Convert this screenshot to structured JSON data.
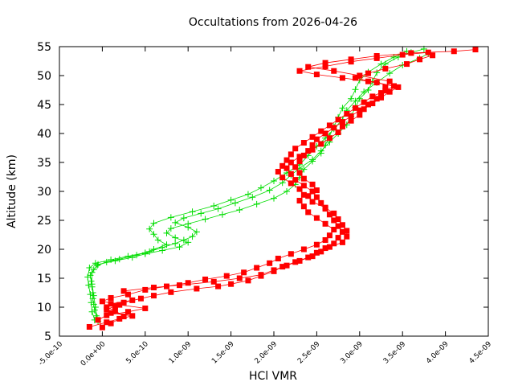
{
  "chart_data": {
    "type": "line",
    "title": "Occultations from 2026-04-26",
    "xlabel": "HCl VMR",
    "ylabel": "Altitude (km)",
    "xlim": [
      -5e-10,
      4.5e-09
    ],
    "ylim": [
      5,
      55
    ],
    "x_tick_labels": [
      "-5.0e-10",
      "0.0e+00",
      "5.0e-10",
      "1.0e-09",
      "1.5e-09",
      "2.0e-09",
      "2.5e-09",
      "3.0e-09",
      "3.5e-09",
      "4.0e-09",
      "4.5e-09"
    ],
    "y_tick_labels": [
      "5",
      "10",
      "15",
      "20",
      "25",
      "30",
      "35",
      "40",
      "45",
      "50",
      "55"
    ],
    "grid": false,
    "legend": "none",
    "series": [
      {
        "color": "#00dd00",
        "marker": "plus",
        "points": [
          [
            -5e-11,
            7.5
          ],
          [
            -7e-11,
            8.5
          ],
          [
            -9e-11,
            9.5
          ],
          [
            -1e-10,
            10.5
          ],
          [
            -1.1e-10,
            11.5
          ],
          [
            -1.1e-10,
            12.5
          ],
          [
            -1.2e-10,
            13.5
          ],
          [
            -1.3e-10,
            14.5
          ],
          [
            -1.4e-10,
            15.5
          ],
          [
            -1e-10,
            16.5
          ],
          [
            -6e-11,
            17.2
          ],
          [
            5e-11,
            17.8
          ],
          [
            2e-10,
            18.3
          ],
          [
            4e-10,
            19.0
          ],
          [
            5.5e-10,
            19.6
          ],
          [
            7e-10,
            20.3
          ],
          [
            8.5e-10,
            21.0
          ],
          [
            9.5e-10,
            21.6
          ],
          [
            1.05e-09,
            22.2
          ],
          [
            1.1e-09,
            23.0
          ],
          [
            1e-09,
            23.8
          ],
          [
            8.5e-10,
            24.6
          ],
          [
            9.5e-10,
            25.4
          ],
          [
            1.15e-09,
            26.2
          ],
          [
            1.35e-09,
            27.0
          ],
          [
            1.55e-09,
            28.0
          ],
          [
            1.75e-09,
            29.0
          ],
          [
            1.95e-09,
            30.2
          ],
          [
            2.1e-09,
            31.5
          ],
          [
            2.2e-09,
            32.8
          ],
          [
            2.3e-09,
            34.0
          ],
          [
            2.45e-09,
            35.5
          ],
          [
            2.55e-09,
            37.0
          ],
          [
            2.65e-09,
            38.5
          ],
          [
            2.75e-09,
            40.0
          ],
          [
            2.85e-09,
            41.5
          ],
          [
            2.9e-09,
            43.0
          ],
          [
            2.95e-09,
            44.5
          ],
          [
            3e-09,
            46.0
          ],
          [
            3.1e-09,
            47.5
          ],
          [
            3.15e-09,
            49.0
          ],
          [
            3.2e-09,
            50.5
          ],
          [
            3.3e-09,
            52.0
          ],
          [
            3.45e-09,
            53.2
          ],
          [
            3.6e-09,
            54.0
          ],
          [
            3.75e-09,
            54.6
          ]
        ]
      },
      {
        "color": "#00dd00",
        "marker": "plus",
        "points": [
          [
            -9e-11,
            7.8
          ],
          [
            -1.2e-10,
            9.2
          ],
          [
            -1.3e-10,
            10.8
          ],
          [
            -1.4e-10,
            12.2
          ],
          [
            -1.6e-10,
            13.8
          ],
          [
            -1.7e-10,
            15.2
          ],
          [
            -1.5e-10,
            16.8
          ],
          [
            -8e-11,
            17.6
          ],
          [
            1e-10,
            18.2
          ],
          [
            3e-10,
            18.8
          ],
          [
            5e-10,
            19.4
          ],
          [
            6e-10,
            20.0
          ],
          [
            7.5e-10,
            20.8
          ],
          [
            6.5e-10,
            21.6
          ],
          [
            6e-10,
            22.6
          ],
          [
            5.5e-10,
            23.5
          ],
          [
            6e-10,
            24.5
          ],
          [
            8e-10,
            25.5
          ],
          [
            1.05e-09,
            26.5
          ],
          [
            1.3e-09,
            27.5
          ],
          [
            1.5e-09,
            28.5
          ],
          [
            1.7e-09,
            29.5
          ],
          [
            1.85e-09,
            30.6
          ],
          [
            2e-09,
            31.8
          ],
          [
            2.15e-09,
            33.2
          ],
          [
            2.3e-09,
            34.6
          ],
          [
            2.4e-09,
            36.2
          ],
          [
            2.5e-09,
            37.8
          ],
          [
            2.6e-09,
            39.2
          ],
          [
            2.7e-09,
            40.8
          ],
          [
            2.8e-09,
            42.4
          ],
          [
            2.85e-09,
            44.0
          ],
          [
            2.95e-09,
            45.6
          ],
          [
            3.05e-09,
            47.2
          ],
          [
            3.2e-09,
            48.8
          ],
          [
            3.35e-09,
            50.4
          ],
          [
            3.5e-09,
            51.8
          ],
          [
            3.7e-09,
            53.0
          ],
          [
            3.8e-09,
            53.8
          ]
        ]
      },
      {
        "color": "#00dd00",
        "marker": "plus",
        "points": [
          [
            -6e-11,
            8.2
          ],
          [
            -8e-11,
            10.0
          ],
          [
            -1e-10,
            12.0
          ],
          [
            -1.2e-10,
            14.0
          ],
          [
            -1.2e-10,
            16.0
          ],
          [
            -5e-11,
            17.4
          ],
          [
            1.5e-10,
            18.0
          ],
          [
            3.5e-10,
            18.6
          ],
          [
            5e-10,
            19.2
          ],
          [
            7e-10,
            19.8
          ],
          [
            9e-10,
            20.4
          ],
          [
            1e-09,
            21.2
          ],
          [
            8.5e-10,
            22.0
          ],
          [
            7.5e-10,
            22.8
          ],
          [
            8e-10,
            23.6
          ],
          [
            1e-09,
            24.4
          ],
          [
            1.2e-09,
            25.2
          ],
          [
            1.4e-09,
            26.0
          ],
          [
            1.6e-09,
            26.8
          ],
          [
            1.8e-09,
            27.8
          ],
          [
            2e-09,
            28.8
          ],
          [
            2.15e-09,
            30.0
          ],
          [
            2.25e-09,
            31.2
          ],
          [
            2.3e-09,
            32.4
          ],
          [
            2.35e-09,
            33.8
          ],
          [
            2.45e-09,
            35.2
          ],
          [
            2.55e-09,
            36.6
          ],
          [
            2.6e-09,
            38.0
          ],
          [
            2.65e-09,
            39.6
          ],
          [
            2.7e-09,
            41.2
          ],
          [
            2.75e-09,
            42.8
          ],
          [
            2.8e-09,
            44.4
          ],
          [
            2.9e-09,
            46.0
          ],
          [
            2.95e-09,
            47.6
          ],
          [
            3e-09,
            49.2
          ],
          [
            3.1e-09,
            50.6
          ],
          [
            3.25e-09,
            52.0
          ],
          [
            3.4e-09,
            53.2
          ],
          [
            3.55e-09,
            54.2
          ]
        ]
      },
      {
        "color": "#ff0000",
        "marker": "square",
        "points": [
          [
            -1.5e-10,
            6.6
          ],
          [
            5e-11,
            7.4
          ],
          [
            2e-10,
            8.0
          ],
          [
            3.5e-10,
            8.5
          ],
          [
            1e-10,
            9.0
          ],
          [
            5e-11,
            9.6
          ],
          [
            1.5e-10,
            10.2
          ],
          [
            2.5e-10,
            10.8
          ],
          [
            4.5e-10,
            11.5
          ],
          [
            6e-10,
            12.0
          ],
          [
            8e-10,
            12.6
          ],
          [
            1.1e-09,
            13.2
          ],
          [
            1.35e-09,
            13.6
          ],
          [
            1.5e-09,
            14.0
          ],
          [
            1.7e-09,
            14.6
          ],
          [
            1.85e-09,
            15.4
          ],
          [
            2e-09,
            16.2
          ],
          [
            2.1e-09,
            17.0
          ],
          [
            2.25e-09,
            17.8
          ],
          [
            2.4e-09,
            18.6
          ],
          [
            2.5e-09,
            19.4
          ],
          [
            2.6e-09,
            20.2
          ],
          [
            2.7e-09,
            21.0
          ],
          [
            2.75e-09,
            22.0
          ],
          [
            2.8e-09,
            23.0
          ],
          [
            2.75e-09,
            24.0
          ],
          [
            2.7e-09,
            25.0
          ],
          [
            2.65e-09,
            26.0
          ],
          [
            2.6e-09,
            27.0
          ],
          [
            2.55e-09,
            28.0
          ],
          [
            2.5e-09,
            29.0
          ],
          [
            2.45e-09,
            30.0
          ],
          [
            2.35e-09,
            31.0
          ],
          [
            2.25e-09,
            32.0
          ],
          [
            2.2e-09,
            33.0
          ],
          [
            2.15e-09,
            34.0
          ],
          [
            2.2e-09,
            35.0
          ],
          [
            2.3e-09,
            36.0
          ],
          [
            2.4e-09,
            37.0
          ],
          [
            2.45e-09,
            38.0
          ],
          [
            2.5e-09,
            39.0
          ],
          [
            2.6e-09,
            40.0
          ],
          [
            2.7e-09,
            41.0
          ],
          [
            2.8e-09,
            42.0
          ],
          [
            2.9e-09,
            43.0
          ],
          [
            3e-09,
            44.0
          ],
          [
            3.1e-09,
            45.0
          ],
          [
            3.2e-09,
            46.0
          ],
          [
            3.25e-09,
            47.0
          ],
          [
            3.3e-09,
            48.0
          ],
          [
            3.35e-09,
            49.0
          ],
          [
            3e-09,
            50.0
          ],
          [
            2.7e-09,
            50.8
          ],
          [
            2.4e-09,
            51.5
          ],
          [
            2.6e-09,
            52.2
          ],
          [
            2.9e-09,
            52.8
          ],
          [
            3.2e-09,
            53.4
          ],
          [
            3.6e-09,
            53.9
          ],
          [
            4.1e-09,
            54.2
          ],
          [
            4.35e-09,
            54.5
          ]
        ]
      },
      {
        "color": "#ff0000",
        "marker": "square",
        "points": [
          [
            0.0,
            6.5
          ],
          [
            -5e-11,
            7.8
          ],
          [
            5e-11,
            8.6
          ],
          [
            3e-10,
            9.2
          ],
          [
            5e-10,
            9.8
          ],
          [
            2e-10,
            10.4
          ],
          [
            0.0,
            11.0
          ],
          [
            1e-10,
            11.6
          ],
          [
            3e-10,
            12.2
          ],
          [
            5e-10,
            13.0
          ],
          [
            7.5e-10,
            13.6
          ],
          [
            1e-09,
            14.2
          ],
          [
            1.2e-09,
            14.8
          ],
          [
            1.45e-09,
            15.4
          ],
          [
            1.65e-09,
            16.0
          ],
          [
            1.8e-09,
            16.8
          ],
          [
            1.95e-09,
            17.6
          ],
          [
            2.05e-09,
            18.4
          ],
          [
            2.2e-09,
            19.2
          ],
          [
            2.35e-09,
            20.0
          ],
          [
            2.5e-09,
            20.8
          ],
          [
            2.6e-09,
            21.6
          ],
          [
            2.65e-09,
            22.4
          ],
          [
            2.7e-09,
            23.4
          ],
          [
            2.6e-09,
            24.4
          ],
          [
            2.5e-09,
            25.4
          ],
          [
            2.4e-09,
            26.4
          ],
          [
            2.35e-09,
            27.4
          ],
          [
            2.3e-09,
            28.4
          ],
          [
            2.35e-09,
            29.4
          ],
          [
            2.3e-09,
            30.4
          ],
          [
            2.2e-09,
            31.4
          ],
          [
            2.1e-09,
            32.4
          ],
          [
            2.05e-09,
            33.4
          ],
          [
            2.1e-09,
            34.4
          ],
          [
            2.15e-09,
            35.4
          ],
          [
            2.2e-09,
            36.4
          ],
          [
            2.25e-09,
            37.4
          ],
          [
            2.35e-09,
            38.4
          ],
          [
            2.45e-09,
            39.4
          ],
          [
            2.55e-09,
            40.4
          ],
          [
            2.65e-09,
            41.4
          ],
          [
            2.75e-09,
            42.4
          ],
          [
            2.85e-09,
            43.4
          ],
          [
            2.95e-09,
            44.4
          ],
          [
            3.05e-09,
            45.4
          ],
          [
            3.15e-09,
            46.4
          ],
          [
            3.3e-09,
            47.4
          ],
          [
            3.4e-09,
            48.2
          ],
          [
            3.1e-09,
            49.0
          ],
          [
            2.8e-09,
            49.6
          ],
          [
            2.5e-09,
            50.2
          ],
          [
            2.3e-09,
            50.8
          ],
          [
            2.6e-09,
            51.6
          ],
          [
            2.9e-09,
            52.4
          ],
          [
            3.2e-09,
            53.0
          ],
          [
            3.5e-09,
            53.6
          ],
          [
            3.8e-09,
            54.0
          ]
        ]
      },
      {
        "color": "#ff0000",
        "marker": "square",
        "points": [
          [
            1e-10,
            7.2
          ],
          [
            2.5e-10,
            8.4
          ],
          [
            1.5e-10,
            9.4
          ],
          [
            5e-11,
            10.0
          ],
          [
            1e-10,
            10.6
          ],
          [
            3.5e-10,
            11.2
          ],
          [
            2.5e-10,
            12.8
          ],
          [
            6e-10,
            13.4
          ],
          [
            9e-10,
            13.8
          ],
          [
            1.3e-09,
            14.4
          ],
          [
            1.6e-09,
            15.0
          ],
          [
            1.85e-09,
            15.6
          ],
          [
            2e-09,
            16.4
          ],
          [
            2.15e-09,
            17.2
          ],
          [
            2.3e-09,
            18.0
          ],
          [
            2.45e-09,
            18.8
          ],
          [
            2.55e-09,
            19.6
          ],
          [
            2.65e-09,
            20.4
          ],
          [
            2.8e-09,
            21.2
          ],
          [
            2.85e-09,
            22.2
          ],
          [
            2.85e-09,
            23.2
          ],
          [
            2.8e-09,
            24.2
          ],
          [
            2.75e-09,
            25.2
          ],
          [
            2.7e-09,
            26.2
          ],
          [
            2.6e-09,
            27.2
          ],
          [
            2.45e-09,
            28.2
          ],
          [
            2.4e-09,
            29.2
          ],
          [
            2.5e-09,
            30.2
          ],
          [
            2.45e-09,
            31.2
          ],
          [
            2.35e-09,
            32.2
          ],
          [
            2.3e-09,
            33.2
          ],
          [
            2.25e-09,
            34.2
          ],
          [
            2.3e-09,
            35.2
          ],
          [
            2.35e-09,
            36.2
          ],
          [
            2.45e-09,
            37.2
          ],
          [
            2.55e-09,
            38.2
          ],
          [
            2.65e-09,
            39.2
          ],
          [
            2.75e-09,
            40.2
          ],
          [
            2.8e-09,
            41.2
          ],
          [
            2.9e-09,
            42.2
          ],
          [
            3e-09,
            43.2
          ],
          [
            3.05e-09,
            44.2
          ],
          [
            3.15e-09,
            45.2
          ],
          [
            3.25e-09,
            46.2
          ],
          [
            3.35e-09,
            47.2
          ],
          [
            3.45e-09,
            48.0
          ],
          [
            3.2e-09,
            48.8
          ],
          [
            2.95e-09,
            49.6
          ],
          [
            3.1e-09,
            50.4
          ],
          [
            3.3e-09,
            51.2
          ],
          [
            3.55e-09,
            52.0
          ],
          [
            3.7e-09,
            52.8
          ],
          [
            3.85e-09,
            53.5
          ]
        ]
      }
    ]
  },
  "colors": {
    "axes": "#000000",
    "background": "#ffffff"
  }
}
